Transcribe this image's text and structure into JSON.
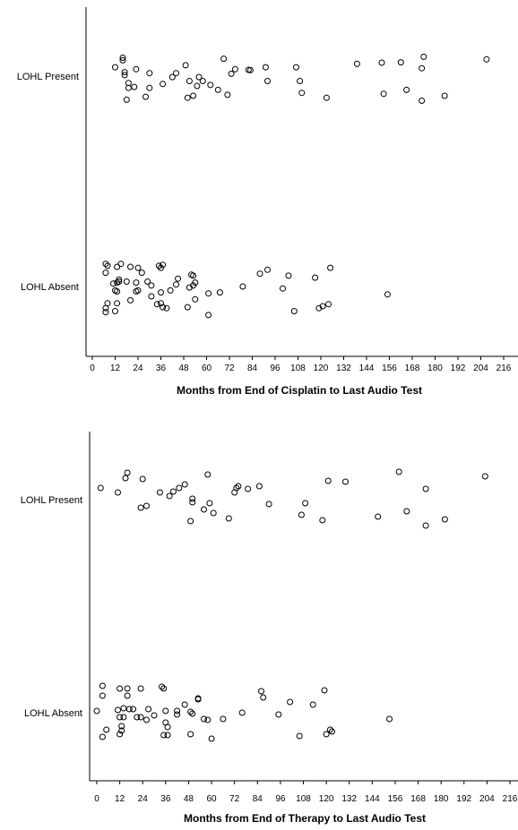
{
  "chart_data": [
    {
      "type": "scatter",
      "xlabel": "Months from End of Cisplatin to Last Audio Test",
      "categories": [
        "LOHL Present",
        "LOHL Absent"
      ],
      "xlim": [
        0,
        216
      ],
      "xticks": [
        0,
        12,
        24,
        36,
        48,
        60,
        72,
        84,
        96,
        108,
        120,
        132,
        144,
        156,
        168,
        180,
        192,
        204,
        216
      ],
      "series": [
        {
          "category": "LOHL Present",
          "points": [
            {
              "x": 16,
              "jitter": 0.93
            },
            {
              "x": 16,
              "jitter": 0.8
            },
            {
              "x": 12,
              "jitter": 0.45
            },
            {
              "x": 23,
              "jitter": 0.35
            },
            {
              "x": 17,
              "jitter": 0.2
            },
            {
              "x": 17,
              "jitter": 0.05
            },
            {
              "x": 30,
              "jitter": 0.15
            },
            {
              "x": 44,
              "jitter": 0.15
            },
            {
              "x": 49,
              "jitter": 0.55
            },
            {
              "x": 69,
              "jitter": 0.88
            },
            {
              "x": 75,
              "jitter": 0.35
            },
            {
              "x": 73,
              "jitter": 0.12
            },
            {
              "x": 83,
              "jitter": 0.3
            },
            {
              "x": 82,
              "jitter": 0.32
            },
            {
              "x": 91,
              "jitter": 0.45
            },
            {
              "x": 107,
              "jitter": 0.45
            },
            {
              "x": 139,
              "jitter": 0.62
            },
            {
              "x": 152,
              "jitter": 0.68
            },
            {
              "x": 162,
              "jitter": 0.7
            },
            {
              "x": 173,
              "jitter": 0.4
            },
            {
              "x": 174,
              "jitter": 0.98
            },
            {
              "x": 207,
              "jitter": 0.85
            },
            {
              "x": 42,
              "jitter": -0.05
            },
            {
              "x": 56,
              "jitter": -0.05
            },
            {
              "x": 58,
              "jitter": -0.25
            },
            {
              "x": 51,
              "jitter": -0.25
            },
            {
              "x": 37,
              "jitter": -0.4
            },
            {
              "x": 19,
              "jitter": -0.35
            },
            {
              "x": 22,
              "jitter": -0.55
            },
            {
              "x": 19,
              "jitter": -0.6
            },
            {
              "x": 30,
              "jitter": -0.6
            },
            {
              "x": 55,
              "jitter": -0.5
            },
            {
              "x": 62,
              "jitter": -0.45
            },
            {
              "x": 66,
              "jitter": -0.7
            },
            {
              "x": 92,
              "jitter": -0.25
            },
            {
              "x": 109,
              "jitter": -0.25
            },
            {
              "x": 110,
              "jitter": -0.85
            },
            {
              "x": 53,
              "jitter": -1.0
            },
            {
              "x": 50,
              "jitter": -1.1
            },
            {
              "x": 28,
              "jitter": -1.05
            },
            {
              "x": 18,
              "jitter": -1.2
            },
            {
              "x": 71,
              "jitter": -0.95
            },
            {
              "x": 123,
              "jitter": -1.1
            },
            {
              "x": 153,
              "jitter": -0.9
            },
            {
              "x": 165,
              "jitter": -0.7
            },
            {
              "x": 173,
              "jitter": -1.25
            },
            {
              "x": 185,
              "jitter": -1.0
            }
          ]
        },
        {
          "category": "LOHL Absent",
          "points": [
            {
              "x": 7,
              "jitter": 1.15
            },
            {
              "x": 8,
              "jitter": 1.05
            },
            {
              "x": 15,
              "jitter": 1.15
            },
            {
              "x": 20,
              "jitter": 1.0
            },
            {
              "x": 13,
              "jitter": 1.0
            },
            {
              "x": 24,
              "jitter": 0.95
            },
            {
              "x": 35,
              "jitter": 1.05
            },
            {
              "x": 37,
              "jitter": 1.1
            },
            {
              "x": 36,
              "jitter": 0.95
            },
            {
              "x": 125,
              "jitter": 0.95
            },
            {
              "x": 92,
              "jitter": 0.85
            },
            {
              "x": 88,
              "jitter": 0.65
            },
            {
              "x": 103,
              "jitter": 0.55
            },
            {
              "x": 117,
              "jitter": 0.45
            },
            {
              "x": 7,
              "jitter": 0.7
            },
            {
              "x": 14,
              "jitter": 0.35
            },
            {
              "x": 26,
              "jitter": 0.7
            },
            {
              "x": 53,
              "jitter": 0.55
            },
            {
              "x": 52,
              "jitter": 0.6
            },
            {
              "x": 45,
              "jitter": 0.4
            },
            {
              "x": 11,
              "jitter": 0.15
            },
            {
              "x": 13,
              "jitter": 0.2
            },
            {
              "x": 14,
              "jitter": 0.25
            },
            {
              "x": 18,
              "jitter": 0.25
            },
            {
              "x": 23,
              "jitter": 0.2
            },
            {
              "x": 29,
              "jitter": 0.25
            },
            {
              "x": 44,
              "jitter": 0.1
            },
            {
              "x": 54,
              "jitter": 0.2
            },
            {
              "x": 53,
              "jitter": 0.05
            },
            {
              "x": 31,
              "jitter": 0.05
            },
            {
              "x": 12,
              "jitter": -0.2
            },
            {
              "x": 13,
              "jitter": -0.25
            },
            {
              "x": 24,
              "jitter": -0.2
            },
            {
              "x": 23,
              "jitter": -0.25
            },
            {
              "x": 31,
              "jitter": -0.5
            },
            {
              "x": 36,
              "jitter": -0.3
            },
            {
              "x": 41,
              "jitter": -0.2
            },
            {
              "x": 51,
              "jitter": -0.05
            },
            {
              "x": 79,
              "jitter": 0.0
            },
            {
              "x": 100,
              "jitter": -0.1
            },
            {
              "x": 61,
              "jitter": -0.35
            },
            {
              "x": 67,
              "jitter": -0.3
            },
            {
              "x": 54,
              "jitter": -0.65
            },
            {
              "x": 50,
              "jitter": -1.05
            },
            {
              "x": 20,
              "jitter": -0.7
            },
            {
              "x": 13,
              "jitter": -0.85
            },
            {
              "x": 8,
              "jitter": -0.85
            },
            {
              "x": 7,
              "jitter": -1.1
            },
            {
              "x": 7,
              "jitter": -1.3
            },
            {
              "x": 12,
              "jitter": -1.25
            },
            {
              "x": 34,
              "jitter": -0.9
            },
            {
              "x": 37,
              "jitter": -1.05
            },
            {
              "x": 39,
              "jitter": -1.1
            },
            {
              "x": 36,
              "jitter": -0.85
            },
            {
              "x": 61,
              "jitter": -1.45
            },
            {
              "x": 106,
              "jitter": -1.25
            },
            {
              "x": 121,
              "jitter": -1.0
            },
            {
              "x": 124,
              "jitter": -0.9
            },
            {
              "x": 119,
              "jitter": -1.1
            },
            {
              "x": 155,
              "jitter": -0.4
            }
          ]
        }
      ]
    },
    {
      "type": "scatter",
      "xlabel": "Months from End of Therapy to Last Audio Test",
      "categories": [
        "LOHL Present",
        "LOHL Absent"
      ],
      "xlim": [
        0,
        216
      ],
      "xticks": [
        0,
        12,
        24,
        36,
        48,
        60,
        72,
        84,
        96,
        108,
        120,
        132,
        144,
        156,
        168,
        180,
        192,
        204,
        216
      ],
      "series": [
        {
          "category": "LOHL Present",
          "points": [
            {
              "x": 2,
              "jitter": 0.65
            },
            {
              "x": 11,
              "jitter": 0.4
            },
            {
              "x": 15,
              "jitter": 1.2
            },
            {
              "x": 16,
              "jitter": 1.5
            },
            {
              "x": 24,
              "jitter": 1.15
            },
            {
              "x": 33,
              "jitter": 0.4
            },
            {
              "x": 38,
              "jitter": 0.2
            },
            {
              "x": 40,
              "jitter": 0.45
            },
            {
              "x": 43,
              "jitter": 0.65
            },
            {
              "x": 46,
              "jitter": 0.85
            },
            {
              "x": 58,
              "jitter": 1.4
            },
            {
              "x": 59,
              "jitter": -0.2
            },
            {
              "x": 61,
              "jitter": -0.75
            },
            {
              "x": 50,
              "jitter": 0.05
            },
            {
              "x": 50,
              "jitter": -0.15
            },
            {
              "x": 49,
              "jitter": -1.2
            },
            {
              "x": 56,
              "jitter": -0.55
            },
            {
              "x": 69,
              "jitter": -1.05
            },
            {
              "x": 72,
              "jitter": 0.4
            },
            {
              "x": 73,
              "jitter": 0.65
            },
            {
              "x": 74,
              "jitter": 0.75
            },
            {
              "x": 79,
              "jitter": 0.6
            },
            {
              "x": 85,
              "jitter": 0.75
            },
            {
              "x": 90,
              "jitter": -0.25
            },
            {
              "x": 23,
              "jitter": -0.45
            },
            {
              "x": 26,
              "jitter": -0.35
            },
            {
              "x": 107,
              "jitter": -0.85
            },
            {
              "x": 109,
              "jitter": -0.2
            },
            {
              "x": 118,
              "jitter": -1.15
            },
            {
              "x": 121,
              "jitter": 1.05
            },
            {
              "x": 130,
              "jitter": 1.0
            },
            {
              "x": 147,
              "jitter": -0.95
            },
            {
              "x": 158,
              "jitter": 1.55
            },
            {
              "x": 162,
              "jitter": -0.65
            },
            {
              "x": 172,
              "jitter": 0.6
            },
            {
              "x": 172,
              "jitter": -1.45
            },
            {
              "x": 182,
              "jitter": -1.1
            },
            {
              "x": 203,
              "jitter": 1.3
            }
          ]
        },
        {
          "category": "LOHL Absent",
          "points": [
            {
              "x": 3,
              "jitter": 1.5
            },
            {
              "x": 3,
              "jitter": 0.95
            },
            {
              "x": 0,
              "jitter": 0.1
            },
            {
              "x": 5,
              "jitter": -0.95
            },
            {
              "x": 3,
              "jitter": -1.35
            },
            {
              "x": 12,
              "jitter": 1.35
            },
            {
              "x": 16,
              "jitter": 1.35
            },
            {
              "x": 23,
              "jitter": 1.35
            },
            {
              "x": 16,
              "jitter": 0.95
            },
            {
              "x": 11,
              "jitter": 0.15
            },
            {
              "x": 14,
              "jitter": 0.25
            },
            {
              "x": 17,
              "jitter": 0.2
            },
            {
              "x": 19,
              "jitter": 0.2
            },
            {
              "x": 12,
              "jitter": -0.25
            },
            {
              "x": 14,
              "jitter": -0.25
            },
            {
              "x": 21,
              "jitter": -0.25
            },
            {
              "x": 13,
              "jitter": -0.75
            },
            {
              "x": 13,
              "jitter": -1.0
            },
            {
              "x": 12,
              "jitter": -1.2
            },
            {
              "x": 23,
              "jitter": -0.25
            },
            {
              "x": 27,
              "jitter": 0.2
            },
            {
              "x": 30,
              "jitter": -0.15
            },
            {
              "x": 26,
              "jitter": -0.4
            },
            {
              "x": 36,
              "jitter": -0.55
            },
            {
              "x": 37,
              "jitter": -0.8
            },
            {
              "x": 35,
              "jitter": -1.25
            },
            {
              "x": 37,
              "jitter": -1.25
            },
            {
              "x": 34,
              "jitter": 1.45
            },
            {
              "x": 35,
              "jitter": 1.35
            },
            {
              "x": 36,
              "jitter": 0.1
            },
            {
              "x": 42,
              "jitter": -0.1
            },
            {
              "x": 42,
              "jitter": 0.1
            },
            {
              "x": 46,
              "jitter": 0.45
            },
            {
              "x": 49,
              "jitter": 0.05
            },
            {
              "x": 50,
              "jitter": -0.05
            },
            {
              "x": 53,
              "jitter": 0.8
            },
            {
              "x": 56,
              "jitter": -0.35
            },
            {
              "x": 49,
              "jitter": -1.2
            },
            {
              "x": 60,
              "jitter": -1.45
            },
            {
              "x": 58,
              "jitter": -0.4
            },
            {
              "x": 66,
              "jitter": -0.35
            },
            {
              "x": 53,
              "jitter": 0.75
            },
            {
              "x": 76,
              "jitter": 0.0
            },
            {
              "x": 86,
              "jitter": 1.2
            },
            {
              "x": 87,
              "jitter": 0.85
            },
            {
              "x": 95,
              "jitter": -0.1
            },
            {
              "x": 101,
              "jitter": 0.6
            },
            {
              "x": 106,
              "jitter": -1.3
            },
            {
              "x": 113,
              "jitter": 0.45
            },
            {
              "x": 119,
              "jitter": 1.25
            },
            {
              "x": 120,
              "jitter": -1.2
            },
            {
              "x": 122,
              "jitter": -0.95
            },
            {
              "x": 123,
              "jitter": -1.05
            },
            {
              "x": 153,
              "jitter": -0.35
            }
          ]
        }
      ]
    }
  ]
}
